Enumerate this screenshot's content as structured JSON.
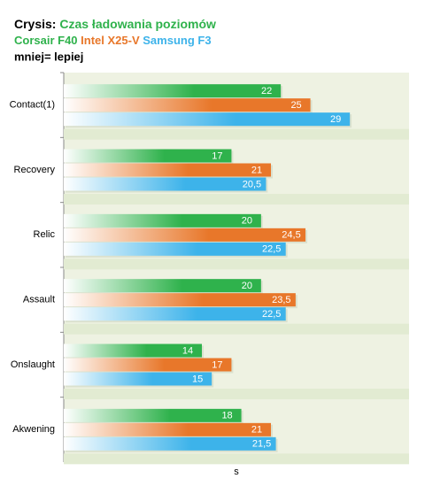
{
  "chart_data": {
    "type": "bar",
    "orientation": "horizontal",
    "title": "Crysis:",
    "subtitle": "Czas ładowania poziomów",
    "note": "mniej= lepiej",
    "xlabel": "s",
    "categories": [
      "Contact(1)",
      "Recovery",
      "Relic",
      "Assault",
      "Onslaught",
      "Akwening"
    ],
    "series": [
      {
        "name": "Corsair F40",
        "color": "#2fb24c",
        "values": [
          22,
          17,
          20,
          20,
          14,
          18
        ]
      },
      {
        "name": "Intel X25-V",
        "color": "#e8772a",
        "values": [
          25,
          21,
          24.5,
          23.5,
          17,
          21
        ],
        "value_labels": [
          "25",
          "21",
          "24,5",
          "23,5",
          "17",
          "21"
        ]
      },
      {
        "name": "Samsung F3",
        "color": "#3db3ea",
        "values": [
          29,
          20.5,
          22.5,
          22.5,
          15,
          21.5
        ],
        "value_labels": [
          "29",
          "20,5",
          "22,5",
          "22,5",
          "15",
          "21,5"
        ]
      }
    ],
    "xlim": [
      0,
      35
    ]
  }
}
